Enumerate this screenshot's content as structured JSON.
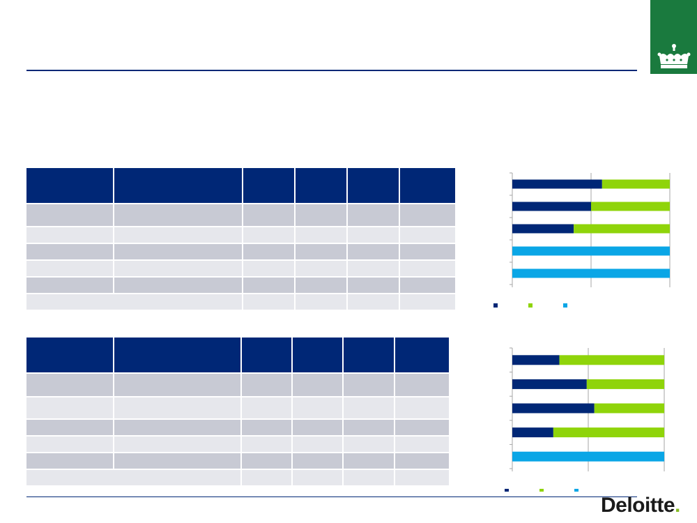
{
  "slide": {
    "title": "",
    "subtitle": ""
  },
  "brand": {
    "logo_text": "Deloitte",
    "logo_dot": ".",
    "crest_icon": "crown-icon",
    "colors": {
      "navy": "#002776",
      "green": "#86bc25",
      "lime": "#8fd40a",
      "cyan": "#0aa6e6",
      "crest_green": "#1a7a3e"
    }
  },
  "table1": {
    "rows": [
      {
        "style": "hdr",
        "cells": [
          "",
          "",
          "",
          "",
          "",
          ""
        ]
      },
      {
        "style": "r-dark",
        "cells": [
          "",
          "",
          "",
          "",
          "",
          ""
        ]
      },
      {
        "style": "r-light",
        "cells": [
          "",
          "",
          "",
          "",
          "",
          ""
        ]
      },
      {
        "style": "r-dark",
        "cells": [
          "",
          "",
          "",
          "",
          "",
          ""
        ]
      },
      {
        "style": "r-light",
        "cells": [
          "",
          "",
          "",
          "",
          "",
          ""
        ]
      },
      {
        "style": "r-dark",
        "cells": [
          "",
          "",
          "",
          "",
          "",
          ""
        ]
      },
      {
        "style": "r-light",
        "cells": [
          "",
          "",
          "",
          "",
          ""
        ],
        "merged_first": true
      }
    ]
  },
  "table2": {
    "rows": [
      {
        "style": "hdr",
        "cells": [
          "",
          "",
          "",
          "",
          "",
          ""
        ]
      },
      {
        "style": "r-dark",
        "cells": [
          "",
          "",
          "",
          "",
          "",
          ""
        ]
      },
      {
        "style": "r-light",
        "cells": [
          "",
          "",
          "",
          "",
          "",
          ""
        ]
      },
      {
        "style": "r-dark",
        "cells": [
          "",
          "",
          "",
          "",
          "",
          ""
        ]
      },
      {
        "style": "r-light",
        "cells": [
          "",
          "",
          "",
          "",
          "",
          ""
        ]
      },
      {
        "style": "r-dark",
        "cells": [
          "",
          "",
          "",
          "",
          "",
          ""
        ]
      },
      {
        "style": "r-light",
        "cells": [
          "",
          "",
          "",
          "",
          ""
        ],
        "merged_first": true
      }
    ]
  },
  "chart_data": [
    {
      "type": "bar",
      "orientation": "horizontal",
      "stacked": true,
      "percent": true,
      "categories": [
        "",
        "",
        "",
        "",
        ""
      ],
      "series": [
        {
          "color": "#002776",
          "values": [
            57,
            50,
            39,
            0,
            0
          ]
        },
        {
          "color": "#8fd40a",
          "values": [
            43,
            50,
            61,
            0,
            0
          ]
        },
        {
          "color": "#0aa6e6",
          "values": [
            0,
            0,
            0,
            100,
            100
          ]
        }
      ],
      "xlim": [
        0,
        100
      ],
      "grid": true,
      "legend": "bottom-left"
    },
    {
      "type": "bar",
      "orientation": "horizontal",
      "stacked": true,
      "percent": true,
      "categories": [
        "",
        "",
        "",
        "",
        ""
      ],
      "series": [
        {
          "color": "#002776",
          "values": [
            31,
            49,
            54,
            27,
            0
          ]
        },
        {
          "color": "#8fd40a",
          "values": [
            69,
            51,
            46,
            73,
            0
          ]
        },
        {
          "color": "#0aa6e6",
          "values": [
            0,
            0,
            0,
            0,
            100
          ]
        }
      ],
      "xlim": [
        0,
        100
      ],
      "grid": true,
      "legend": "bottom-center"
    }
  ]
}
